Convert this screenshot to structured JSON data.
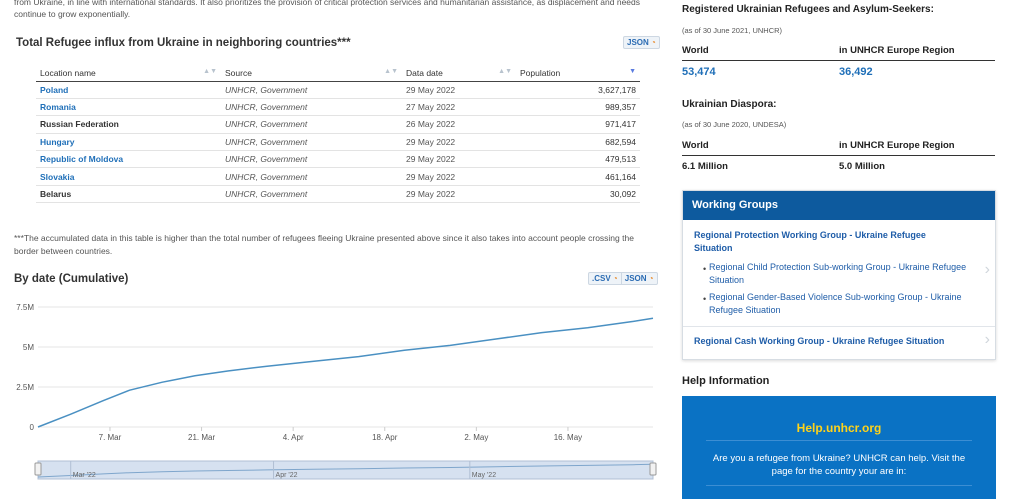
{
  "intro_text": "from Ukraine, in line with international standards. It also prioritizes the provision of critical protection services and humanitarian assistance, as displacement and needs continue to grow exponentially.",
  "influx": {
    "title": "Total Refugee influx from Ukraine in neighboring countries***",
    "json_label": "JSON",
    "columns": [
      "Location name",
      "Source",
      "Data date",
      "Population"
    ],
    "rows": [
      {
        "name": "Poland",
        "link": true,
        "source": "UNHCR, Government",
        "date": "29 May 2022",
        "population": "3,627,178"
      },
      {
        "name": "Romania",
        "link": true,
        "source": "UNHCR, Government",
        "date": "27 May 2022",
        "population": "989,357"
      },
      {
        "name": "Russian Federation",
        "link": false,
        "source": "UNHCR, Government",
        "date": "26 May 2022",
        "population": "971,417"
      },
      {
        "name": "Hungary",
        "link": true,
        "source": "UNHCR, Government",
        "date": "29 May 2022",
        "population": "682,594"
      },
      {
        "name": "Republic of Moldova",
        "link": true,
        "source": "UNHCR, Government",
        "date": "29 May 2022",
        "population": "479,513"
      },
      {
        "name": "Slovakia",
        "link": true,
        "source": "UNHCR, Government",
        "date": "29 May 2022",
        "population": "461,164"
      },
      {
        "name": "Belarus",
        "link": false,
        "source": "UNHCR, Government",
        "date": "29 May 2022",
        "population": "30,092"
      }
    ],
    "footnote": "***The accumulated data in this table is higher than the total number of refugees fleeing Ukraine presented above since it also takes into account people crossing the border between countries."
  },
  "by_date": {
    "title": "By date (Cumulative)",
    "csv_label": ".CSV",
    "json_label": "JSON"
  },
  "chart_data": {
    "type": "line",
    "x_tick_labels": [
      "7. Mar",
      "21. Mar",
      "4. Apr",
      "18. Apr",
      "2. May",
      "16. May"
    ],
    "y_tick_labels": [
      "0",
      "2.5M",
      "5M",
      "7.5M"
    ],
    "ylim": [
      0,
      7500000
    ],
    "grid": true,
    "x": [
      "2022-02-24",
      "2022-03-01",
      "2022-03-06",
      "2022-03-10",
      "2022-03-15",
      "2022-03-20",
      "2022-03-25",
      "2022-03-31",
      "2022-04-07",
      "2022-04-14",
      "2022-04-21",
      "2022-04-28",
      "2022-05-05",
      "2022-05-12",
      "2022-05-19",
      "2022-05-26",
      "2022-05-29"
    ],
    "y": [
      0,
      800000,
      1650000,
      2300000,
      2800000,
      3200000,
      3500000,
      3800000,
      4100000,
      4400000,
      4800000,
      5100000,
      5500000,
      5900000,
      6200000,
      6600000,
      6800000
    ],
    "navigator_labels": [
      "Mar '22",
      "Apr '22",
      "May '22"
    ]
  },
  "refugees": {
    "title": "Registered Ukrainian Refugees and Asylum-Seekers:",
    "sub": "(as of 30 June 2021, UNHCR)",
    "col1": "World",
    "col2": "in UNHCR Europe Region",
    "val1": "53,474",
    "val2": "36,492"
  },
  "diaspora": {
    "title": "Ukrainian Diaspora:",
    "sub": "(as of 30 June 2020, UNDESA)",
    "col1": "World",
    "col2": "in UNHCR Europe Region",
    "val1": "6.1 Million",
    "val2": "5.0 Million"
  },
  "working_groups": {
    "title": "Working Groups",
    "main": "Regional Protection Working Group - Ukraine Refugee Situation",
    "subs": [
      "Regional Child Protection Sub-working Group - Ukraine Refugee Situation",
      "Regional Gender-Based Violence Sub-working Group - Ukraine Refugee Situation"
    ],
    "cash": "Regional Cash Working Group - Ukraine Refugee Situation"
  },
  "help": {
    "title": "Help Information",
    "link": "Help.unhcr.org",
    "text": "Are you a refugee from Ukraine? UNHCR can help. Visit the page for the country your are in:"
  },
  "colors": {
    "accent": "#1f6fb8",
    "line": "#4a90c2",
    "header": "#0d5a9e",
    "help_bg": "#0a72c4",
    "help_link": "#ffd31a"
  }
}
